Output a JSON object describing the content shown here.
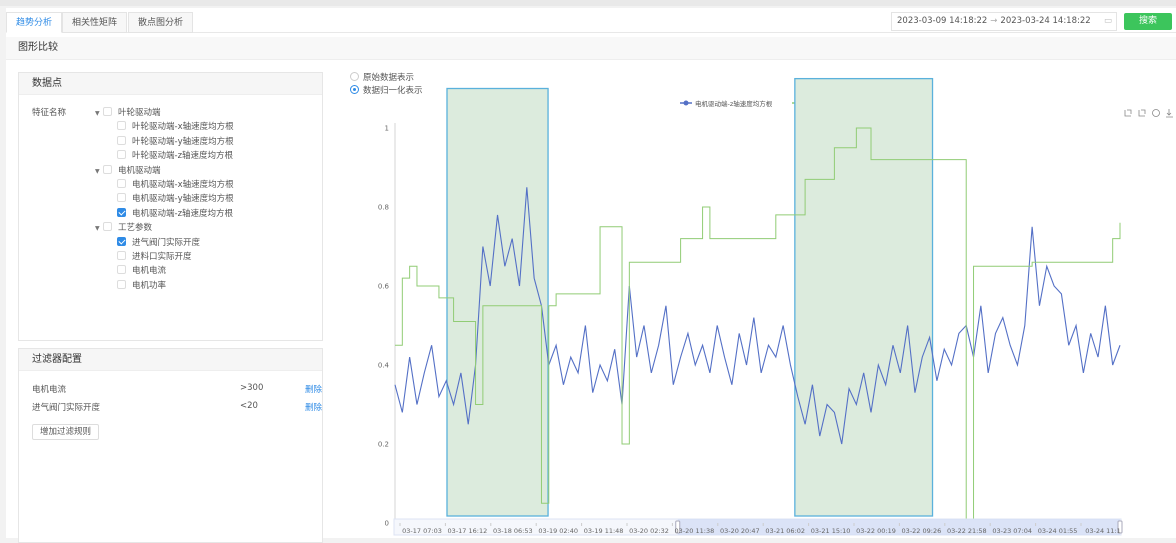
{
  "tabs": [
    {
      "label": "趋势分析",
      "active": true
    },
    {
      "label": "相关性矩阵",
      "active": false
    },
    {
      "label": "散点图分析",
      "active": false
    }
  ],
  "date_range": {
    "start": "2023-03-09 14:18:22",
    "end": "2023-03-24 14:18:22",
    "separator": "→"
  },
  "search_label": "搜索",
  "section_title": "图形比较",
  "datapoints": {
    "title": "数据点",
    "feature_label": "特征名称",
    "groups": [
      {
        "label": "叶轮驱动端",
        "items": [
          {
            "label": "叶轮驱动端-x轴速度均方根",
            "checked": false
          },
          {
            "label": "叶轮驱动端-y轴速度均方根",
            "checked": false
          },
          {
            "label": "叶轮驱动端-z轴速度均方根",
            "checked": false
          }
        ]
      },
      {
        "label": "电机驱动端",
        "items": [
          {
            "label": "电机驱动端-x轴速度均方根",
            "checked": false
          },
          {
            "label": "电机驱动端-y轴速度均方根",
            "checked": false
          },
          {
            "label": "电机驱动端-z轴速度均方根",
            "checked": true
          }
        ]
      },
      {
        "label": "工艺参数",
        "items": [
          {
            "label": "进气阀门实际开度",
            "checked": true
          },
          {
            "label": "进料口实际开度",
            "checked": false
          },
          {
            "label": "电机电流",
            "checked": false
          },
          {
            "label": "电机功率",
            "checked": false
          }
        ]
      }
    ]
  },
  "filters": {
    "title": "过滤器配置",
    "rules": [
      {
        "name": "电机电流",
        "condition": ">300",
        "action": "删除"
      },
      {
        "name": "进气阀门实际开度",
        "condition": "<20",
        "action": "删除"
      }
    ],
    "add_label": "增加过滤规则"
  },
  "display_mode": {
    "options": [
      "原始数据表示",
      "数据归一化表示"
    ],
    "selected": 1
  },
  "toolbox_icons": [
    "zoom-select-icon",
    "zoom-reset-icon",
    "restore-icon",
    "download-icon"
  ],
  "chart_data": {
    "type": "line",
    "ylim": [
      0,
      1
    ],
    "yticks": [
      "0",
      "0.2",
      "0.4",
      "0.6",
      "0.8",
      "1"
    ],
    "xtick_labels": [
      "03-17 07:03",
      "03-17 16:12",
      "03-18 06:53",
      "03-19 02:40",
      "03-19 11:48",
      "03-20 02:32",
      "03-20 11:38",
      "03-20 20:47",
      "03-21 06:02",
      "03-21 15:10",
      "03-22 00:19",
      "03-22 09:26",
      "03-22 21:58",
      "03-23 07:04",
      "03-24 01:55",
      "03-24 11:1"
    ],
    "legend_position": "top-center",
    "colors": {
      "series1": "#5470c6",
      "series2": "#91cc75",
      "highlight_fill": "#dcebdd",
      "highlight_border": "#5ab1dc",
      "zoom_fill": "#d5ddf5"
    },
    "series": [
      {
        "name": "电机驱动端-z轴速度均方根",
        "values": [
          0.35,
          0.28,
          0.42,
          0.3,
          0.38,
          0.45,
          0.32,
          0.36,
          0.3,
          0.38,
          0.25,
          0.4,
          0.7,
          0.6,
          0.78,
          0.65,
          0.72,
          0.6,
          0.85,
          0.62,
          0.55,
          0.4,
          0.45,
          0.35,
          0.42,
          0.38,
          0.5,
          0.33,
          0.4,
          0.36,
          0.44,
          0.3,
          0.6,
          0.42,
          0.5,
          0.38,
          0.45,
          0.55,
          0.35,
          0.42,
          0.48,
          0.4,
          0.45,
          0.38,
          0.5,
          0.42,
          0.35,
          0.48,
          0.4,
          0.52,
          0.38,
          0.45,
          0.42,
          0.5,
          0.4,
          0.32,
          0.25,
          0.35,
          0.22,
          0.3,
          0.28,
          0.2,
          0.34,
          0.3,
          0.38,
          0.28,
          0.4,
          0.35,
          0.45,
          0.38,
          0.5,
          0.33,
          0.42,
          0.47,
          0.36,
          0.44,
          0.4,
          0.48,
          0.5,
          0.42,
          0.55,
          0.38,
          0.48,
          0.52,
          0.45,
          0.4,
          0.5,
          0.75,
          0.55,
          0.65,
          0.6,
          0.58,
          0.45,
          0.5,
          0.38,
          0.48,
          0.42,
          0.55,
          0.4,
          0.45
        ]
      },
      {
        "name": "进气阀门实际开度",
        "values": [
          0.45,
          0.62,
          0.65,
          0.6,
          0.6,
          0.6,
          0.57,
          0.57,
          0.51,
          0.51,
          0.51,
          0.3,
          0.55,
          0.55,
          0.55,
          0.55,
          0.55,
          0.55,
          0.55,
          0.55,
          0.05,
          0.55,
          0.58,
          0.58,
          0.58,
          0.58,
          0.58,
          0.58,
          0.75,
          0.75,
          0.75,
          0.2,
          0.66,
          0.66,
          0.66,
          0.66,
          0.66,
          0.66,
          0.66,
          0.72,
          0.72,
          0.72,
          0.8,
          0.72,
          0.72,
          0.72,
          0.72,
          0.72,
          0.72,
          0.72,
          0.72,
          0.72,
          0.78,
          0.78,
          0.78,
          0.78,
          0.87,
          0.87,
          0.87,
          0.87,
          0.95,
          0.95,
          0.95,
          1.0,
          1.0,
          0.92,
          0.92,
          0.92,
          0.92,
          0.92,
          0.92,
          0.92,
          0.92,
          0.92,
          0.92,
          0.92,
          0.92,
          0.92,
          0.0,
          0.65,
          0.65,
          0.65,
          0.65,
          0.65,
          0.65,
          0.65,
          0.65,
          0.66,
          0.66,
          0.66,
          0.66,
          0.66,
          0.66,
          0.66,
          0.66,
          0.66,
          0.66,
          0.66,
          0.72,
          0.76
        ]
      }
    ],
    "highlight_ranges": [
      {
        "from_index": 7.1,
        "to_index": 20.9,
        "y_top": 1.1
      },
      {
        "from_index": 54.6,
        "to_index": 73.4,
        "y_top": 1.125
      }
    ],
    "datazoom_range_percent": [
      39,
      100
    ]
  }
}
